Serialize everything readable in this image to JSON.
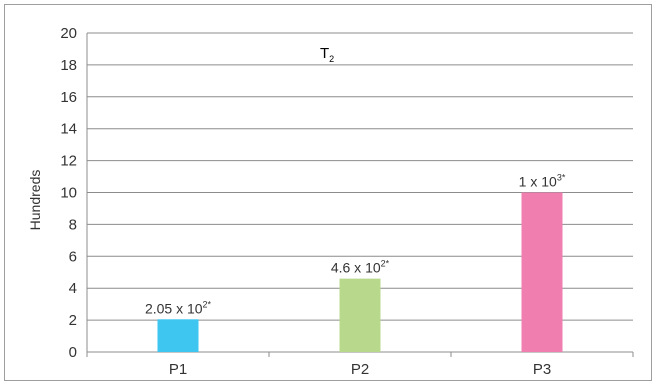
{
  "chart_data": {
    "type": "bar",
    "title": "T",
    "title_subscript": "2",
    "ylabel": "Hundreds",
    "xlabel": "",
    "categories": [
      "P1",
      "P2",
      "P3"
    ],
    "values": [
      2.05,
      4.6,
      10
    ],
    "data_labels": [
      {
        "base": "2.05 x 10",
        "sup": "2*"
      },
      {
        "base": "4.6 x 10",
        "sup": "2*"
      },
      {
        "base": "1 x 10",
        "sup": "3*"
      }
    ],
    "colors": [
      "#3ec6f0",
      "#b8d98b",
      "#f07fb0"
    ],
    "ylim": [
      0,
      20
    ],
    "yticks": [
      0,
      2,
      4,
      6,
      8,
      10,
      12,
      14,
      16,
      18,
      20
    ],
    "grid": true,
    "legend": "none"
  }
}
